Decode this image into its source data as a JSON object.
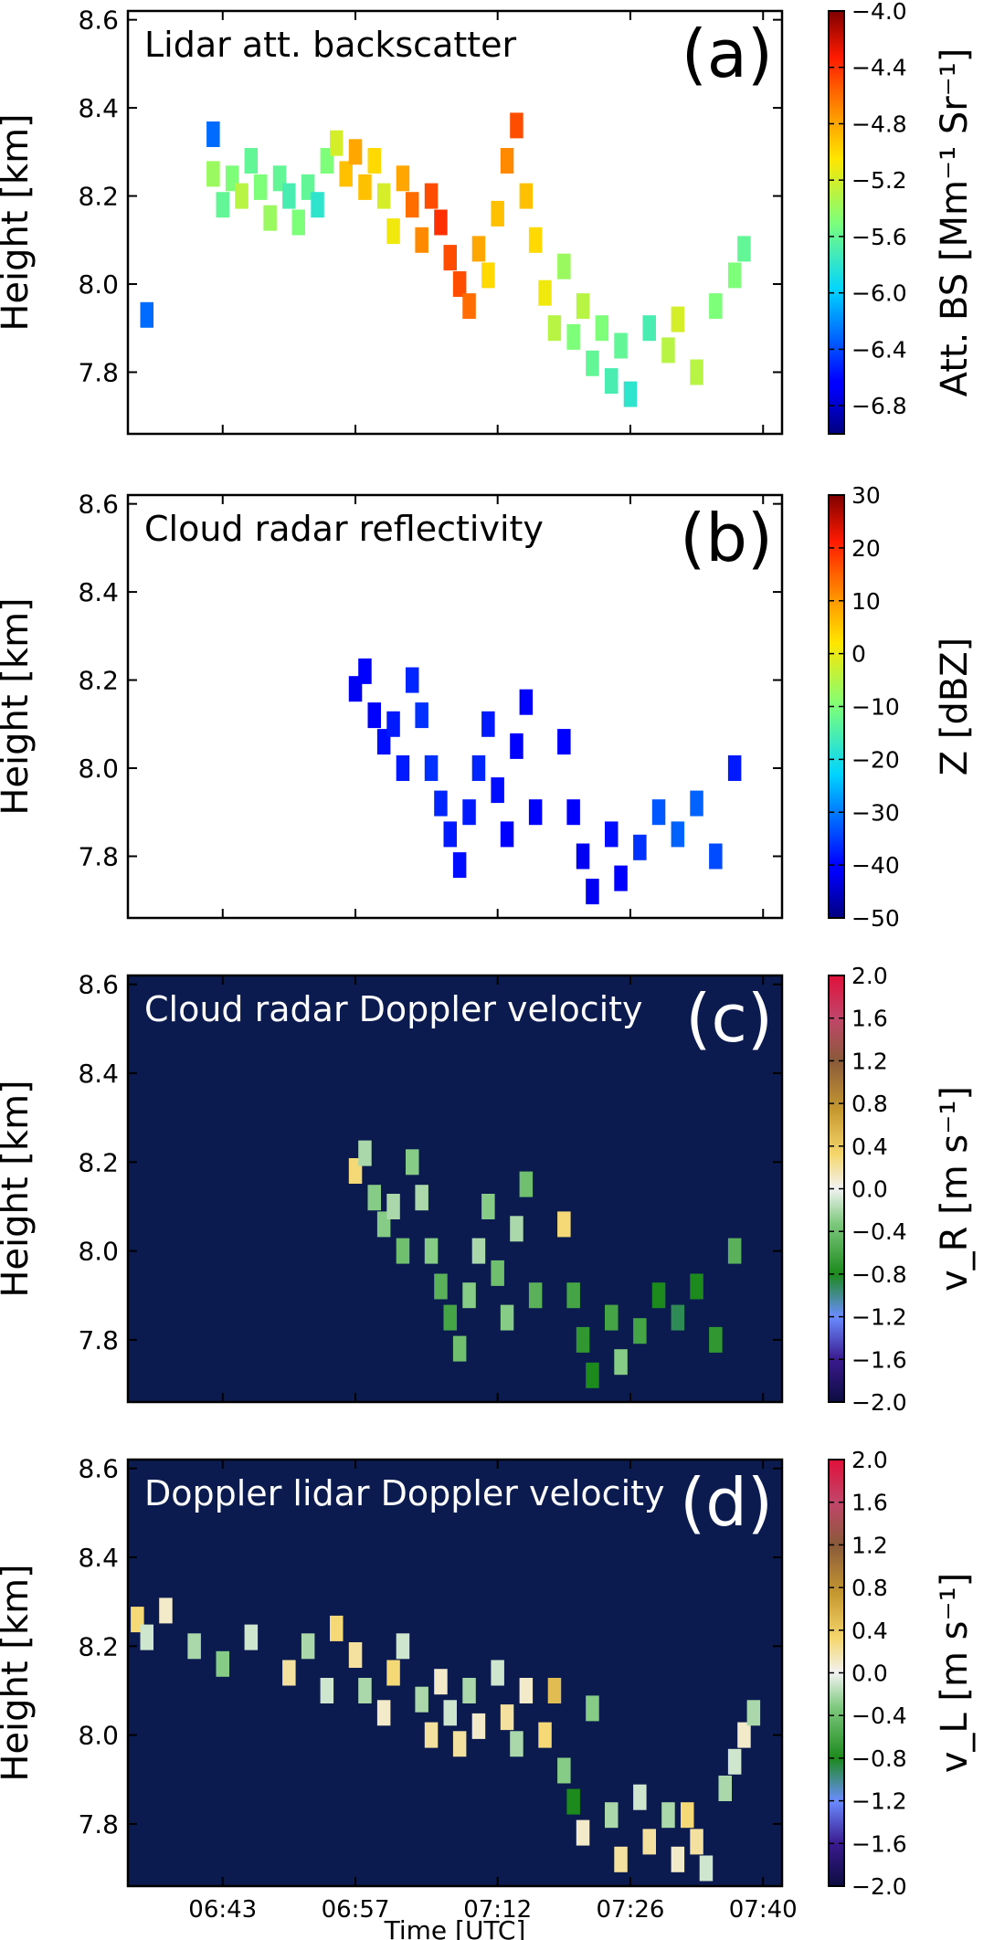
{
  "chart_data": [
    {
      "type": "heatmap",
      "panel_label": "(a)",
      "title": "Lidar att. backscatter",
      "ylabel": "Height [km]",
      "ylim": [
        7.66,
        8.62
      ],
      "yticks": [
        "7.8",
        "8.0",
        "8.2",
        "8.4",
        "8.6"
      ],
      "xlim": [
        "06:33",
        "07:42"
      ],
      "colorbar": {
        "label": "Att. BS [Mm⁻¹ Sr⁻¹]",
        "range": [
          -7.0,
          -4.0
        ],
        "ticks": [
          "-4.0",
          "-4.4",
          "-4.8",
          "-5.2",
          "-5.6",
          "-6.0",
          "-6.4",
          "-6.8"
        ],
        "colormap": "jet",
        "scale": "log10"
      },
      "background": "#ffffff",
      "cells": [
        {
          "t": "06:35",
          "z": 7.93,
          "v": -6.3
        },
        {
          "t": "06:42",
          "z": 8.34,
          "v": -6.3
        },
        {
          "t": "06:42",
          "z": 8.25,
          "v": -5.4
        },
        {
          "t": "06:43",
          "z": 8.18,
          "v": -5.6
        },
        {
          "t": "06:44",
          "z": 8.24,
          "v": -5.5
        },
        {
          "t": "06:45",
          "z": 8.2,
          "v": -5.3
        },
        {
          "t": "06:46",
          "z": 8.28,
          "v": -5.6
        },
        {
          "t": "06:47",
          "z": 8.22,
          "v": -5.5
        },
        {
          "t": "06:48",
          "z": 8.15,
          "v": -5.4
        },
        {
          "t": "06:49",
          "z": 8.24,
          "v": -5.6
        },
        {
          "t": "06:50",
          "z": 8.2,
          "v": -5.7
        },
        {
          "t": "06:51",
          "z": 8.14,
          "v": -5.5
        },
        {
          "t": "06:52",
          "z": 8.22,
          "v": -5.6
        },
        {
          "t": "06:53",
          "z": 8.18,
          "v": -5.8
        },
        {
          "t": "06:54",
          "z": 8.28,
          "v": -5.5
        },
        {
          "t": "06:55",
          "z": 8.32,
          "v": -5.2
        },
        {
          "t": "06:56",
          "z": 8.25,
          "v": -4.9
        },
        {
          "t": "06:57",
          "z": 8.3,
          "v": -4.8
        },
        {
          "t": "06:58",
          "z": 8.22,
          "v": -4.9
        },
        {
          "t": "06:59",
          "z": 8.28,
          "v": -5.0
        },
        {
          "t": "07:00",
          "z": 8.2,
          "v": -5.2
        },
        {
          "t": "07:01",
          "z": 8.12,
          "v": -5.1
        },
        {
          "t": "07:02",
          "z": 8.24,
          "v": -4.8
        },
        {
          "t": "07:03",
          "z": 8.18,
          "v": -4.6
        },
        {
          "t": "07:04",
          "z": 8.1,
          "v": -4.7
        },
        {
          "t": "07:05",
          "z": 8.2,
          "v": -4.5
        },
        {
          "t": "07:06",
          "z": 8.14,
          "v": -4.4
        },
        {
          "t": "07:07",
          "z": 8.06,
          "v": -4.5
        },
        {
          "t": "07:08",
          "z": 8.0,
          "v": -4.5
        },
        {
          "t": "07:09",
          "z": 7.95,
          "v": -4.6
        },
        {
          "t": "07:10",
          "z": 8.08,
          "v": -4.8
        },
        {
          "t": "07:11",
          "z": 8.02,
          "v": -5.0
        },
        {
          "t": "07:12",
          "z": 8.16,
          "v": -4.9
        },
        {
          "t": "07:13",
          "z": 8.28,
          "v": -4.7
        },
        {
          "t": "07:14",
          "z": 8.36,
          "v": -4.5
        },
        {
          "t": "07:15",
          "z": 8.2,
          "v": -4.9
        },
        {
          "t": "07:16",
          "z": 8.1,
          "v": -5.0
        },
        {
          "t": "07:17",
          "z": 7.98,
          "v": -5.1
        },
        {
          "t": "07:18",
          "z": 7.9,
          "v": -5.3
        },
        {
          "t": "07:19",
          "z": 8.04,
          "v": -5.4
        },
        {
          "t": "07:20",
          "z": 7.88,
          "v": -5.5
        },
        {
          "t": "07:21",
          "z": 7.95,
          "v": -5.3
        },
        {
          "t": "07:22",
          "z": 7.82,
          "v": -5.6
        },
        {
          "t": "07:23",
          "z": 7.9,
          "v": -5.5
        },
        {
          "t": "07:24",
          "z": 7.78,
          "v": -5.7
        },
        {
          "t": "07:25",
          "z": 7.86,
          "v": -5.6
        },
        {
          "t": "07:26",
          "z": 7.75,
          "v": -5.8
        },
        {
          "t": "07:28",
          "z": 7.9,
          "v": -5.7
        },
        {
          "t": "07:30",
          "z": 7.85,
          "v": -5.3
        },
        {
          "t": "07:31",
          "z": 7.92,
          "v": -5.2
        },
        {
          "t": "07:33",
          "z": 7.8,
          "v": -5.3
        },
        {
          "t": "07:35",
          "z": 7.95,
          "v": -5.5
        },
        {
          "t": "07:37",
          "z": 8.02,
          "v": -5.5
        },
        {
          "t": "07:38",
          "z": 8.08,
          "v": -5.6
        }
      ]
    },
    {
      "type": "heatmap",
      "panel_label": "(b)",
      "title": "Cloud radar reflectivity",
      "ylabel": "Height [km]",
      "ylim": [
        7.66,
        8.62
      ],
      "yticks": [
        "7.8",
        "8.0",
        "8.2",
        "8.4",
        "8.6"
      ],
      "xlim": [
        "06:33",
        "07:42"
      ],
      "colorbar": {
        "label": "Z [dBZ]",
        "range": [
          -50,
          30
        ],
        "ticks": [
          "30",
          "20",
          "10",
          "0",
          "-10",
          "-20",
          "-30",
          "-40",
          "-50"
        ],
        "colormap": "jet"
      },
      "background": "#ffffff",
      "cells": [
        {
          "t": "06:57",
          "z": 8.18,
          "v": -42
        },
        {
          "t": "06:58",
          "z": 8.22,
          "v": -41
        },
        {
          "t": "06:59",
          "z": 8.12,
          "v": -40
        },
        {
          "t": "07:00",
          "z": 8.06,
          "v": -39
        },
        {
          "t": "07:01",
          "z": 8.1,
          "v": -38
        },
        {
          "t": "07:02",
          "z": 8.0,
          "v": -38
        },
        {
          "t": "07:03",
          "z": 8.2,
          "v": -37
        },
        {
          "t": "07:04",
          "z": 8.12,
          "v": -36
        },
        {
          "t": "07:05",
          "z": 8.0,
          "v": -36
        },
        {
          "t": "07:06",
          "z": 7.92,
          "v": -37
        },
        {
          "t": "07:07",
          "z": 7.85,
          "v": -38
        },
        {
          "t": "07:08",
          "z": 7.78,
          "v": -39
        },
        {
          "t": "07:09",
          "z": 7.9,
          "v": -38
        },
        {
          "t": "07:10",
          "z": 8.0,
          "v": -37
        },
        {
          "t": "07:11",
          "z": 8.1,
          "v": -38
        },
        {
          "t": "07:12",
          "z": 7.95,
          "v": -39
        },
        {
          "t": "07:13",
          "z": 7.85,
          "v": -40
        },
        {
          "t": "07:14",
          "z": 8.05,
          "v": -40
        },
        {
          "t": "07:15",
          "z": 8.15,
          "v": -41
        },
        {
          "t": "07:16",
          "z": 7.9,
          "v": -40
        },
        {
          "t": "07:19",
          "z": 8.06,
          "v": -40
        },
        {
          "t": "07:20",
          "z": 7.9,
          "v": -41
        },
        {
          "t": "07:21",
          "z": 7.8,
          "v": -42
        },
        {
          "t": "07:22",
          "z": 7.72,
          "v": -42
        },
        {
          "t": "07:24",
          "z": 7.85,
          "v": -39
        },
        {
          "t": "07:25",
          "z": 7.75,
          "v": -40
        },
        {
          "t": "07:27",
          "z": 7.82,
          "v": -36
        },
        {
          "t": "07:29",
          "z": 7.9,
          "v": -33
        },
        {
          "t": "07:31",
          "z": 7.85,
          "v": -32
        },
        {
          "t": "07:33",
          "z": 7.92,
          "v": -32
        },
        {
          "t": "07:35",
          "z": 7.8,
          "v": -34
        },
        {
          "t": "07:37",
          "z": 8.0,
          "v": -38
        }
      ]
    },
    {
      "type": "heatmap",
      "panel_label": "(c)",
      "title": "Cloud radar Doppler velocity",
      "ylabel": "Height [km]",
      "ylim": [
        7.66,
        8.62
      ],
      "yticks": [
        "7.8",
        "8.0",
        "8.2",
        "8.4",
        "8.6"
      ],
      "xlim": [
        "06:33",
        "07:42"
      ],
      "colorbar": {
        "label": "v_R [m s⁻¹]",
        "range": [
          -2.0,
          2.0
        ],
        "ticks": [
          "2.0",
          "1.6",
          "1.2",
          "0.8",
          "0.4",
          "0.0",
          "-0.4",
          "-0.8",
          "-1.2",
          "-1.6",
          "-2.0"
        ],
        "colormap": "diverging-green-red"
      },
      "background": "#0b1b4f",
      "cells": [
        {
          "t": "06:57",
          "z": 8.18,
          "v": 0.3
        },
        {
          "t": "06:58",
          "z": 8.22,
          "v": -0.2
        },
        {
          "t": "06:59",
          "z": 8.12,
          "v": -0.3
        },
        {
          "t": "07:00",
          "z": 8.06,
          "v": -0.3
        },
        {
          "t": "07:01",
          "z": 8.1,
          "v": -0.2
        },
        {
          "t": "07:02",
          "z": 8.0,
          "v": -0.4
        },
        {
          "t": "07:03",
          "z": 8.2,
          "v": -0.3
        },
        {
          "t": "07:04",
          "z": 8.12,
          "v": -0.2
        },
        {
          "t": "07:05",
          "z": 8.0,
          "v": -0.3
        },
        {
          "t": "07:06",
          "z": 7.92,
          "v": -0.5
        },
        {
          "t": "07:07",
          "z": 7.85,
          "v": -0.6
        },
        {
          "t": "07:08",
          "z": 7.78,
          "v": -0.4
        },
        {
          "t": "07:09",
          "z": 7.9,
          "v": -0.3
        },
        {
          "t": "07:10",
          "z": 8.0,
          "v": -0.2
        },
        {
          "t": "07:11",
          "z": 8.1,
          "v": -0.3
        },
        {
          "t": "07:12",
          "z": 7.95,
          "v": -0.4
        },
        {
          "t": "07:13",
          "z": 7.85,
          "v": -0.3
        },
        {
          "t": "07:14",
          "z": 8.05,
          "v": -0.2
        },
        {
          "t": "07:15",
          "z": 8.15,
          "v": -0.4
        },
        {
          "t": "07:16",
          "z": 7.9,
          "v": -0.5
        },
        {
          "t": "07:19",
          "z": 8.06,
          "v": 0.3
        },
        {
          "t": "07:20",
          "z": 7.9,
          "v": -0.6
        },
        {
          "t": "07:21",
          "z": 7.8,
          "v": -0.7
        },
        {
          "t": "07:22",
          "z": 7.72,
          "v": -0.8
        },
        {
          "t": "07:24",
          "z": 7.85,
          "v": -0.6
        },
        {
          "t": "07:25",
          "z": 7.75,
          "v": -0.3
        },
        {
          "t": "07:27",
          "z": 7.82,
          "v": -0.6
        },
        {
          "t": "07:29",
          "z": 7.9,
          "v": -0.8
        },
        {
          "t": "07:31",
          "z": 7.85,
          "v": -0.9
        },
        {
          "t": "07:33",
          "z": 7.92,
          "v": -0.8
        },
        {
          "t": "07:35",
          "z": 7.8,
          "v": -0.7
        },
        {
          "t": "07:37",
          "z": 8.0,
          "v": -0.5
        }
      ]
    },
    {
      "type": "heatmap",
      "panel_label": "(d)",
      "title": "Doppler lidar Doppler velocity",
      "ylabel": "Height [km]",
      "xlabel": "Time [UTC]",
      "ylim": [
        7.66,
        8.62
      ],
      "yticks": [
        "7.8",
        "8.0",
        "8.2",
        "8.4",
        "8.6"
      ],
      "xlim": [
        "06:33",
        "07:42"
      ],
      "xticks": [
        "06:43",
        "06:57",
        "07:12",
        "07:26",
        "07:40"
      ],
      "colorbar": {
        "label": "v_L [m s⁻¹]",
        "range": [
          -2.0,
          2.0
        ],
        "ticks": [
          "2.0",
          "1.6",
          "1.2",
          "0.8",
          "0.4",
          "0.0",
          "-0.4",
          "-0.8",
          "-1.2",
          "-1.6",
          "-2.0"
        ],
        "colormap": "diverging-green-red"
      },
      "background": "#0b1b4f",
      "cells": [
        {
          "t": "06:34",
          "z": 8.26,
          "v": 0.3
        },
        {
          "t": "06:35",
          "z": 8.22,
          "v": -0.1
        },
        {
          "t": "06:37",
          "z": 8.28,
          "v": 0.1
        },
        {
          "t": "06:40",
          "z": 8.2,
          "v": -0.2
        },
        {
          "t": "06:43",
          "z": 8.16,
          "v": -0.3
        },
        {
          "t": "06:46",
          "z": 8.22,
          "v": -0.1
        },
        {
          "t": "06:50",
          "z": 8.14,
          "v": 0.2
        },
        {
          "t": "06:52",
          "z": 8.2,
          "v": -0.2
        },
        {
          "t": "06:54",
          "z": 8.1,
          "v": -0.1
        },
        {
          "t": "06:55",
          "z": 8.24,
          "v": 0.3
        },
        {
          "t": "06:57",
          "z": 8.18,
          "v": 0.2
        },
        {
          "t": "06:58",
          "z": 8.1,
          "v": -0.2
        },
        {
          "t": "07:00",
          "z": 8.05,
          "v": 0.1
        },
        {
          "t": "07:01",
          "z": 8.14,
          "v": 0.3
        },
        {
          "t": "07:02",
          "z": 8.2,
          "v": -0.1
        },
        {
          "t": "07:04",
          "z": 8.08,
          "v": -0.2
        },
        {
          "t": "07:05",
          "z": 8.0,
          "v": 0.2
        },
        {
          "t": "07:06",
          "z": 8.12,
          "v": 0.1
        },
        {
          "t": "07:07",
          "z": 8.05,
          "v": -0.1
        },
        {
          "t": "07:08",
          "z": 7.98,
          "v": 0.2
        },
        {
          "t": "07:09",
          "z": 8.1,
          "v": -0.2
        },
        {
          "t": "07:10",
          "z": 8.02,
          "v": 0.1
        },
        {
          "t": "07:12",
          "z": 8.14,
          "v": -0.1
        },
        {
          "t": "07:13",
          "z": 8.04,
          "v": 0.2
        },
        {
          "t": "07:14",
          "z": 7.98,
          "v": -0.2
        },
        {
          "t": "07:15",
          "z": 8.1,
          "v": 0.1
        },
        {
          "t": "07:17",
          "z": 8.0,
          "v": 0.3
        },
        {
          "t": "07:18",
          "z": 8.1,
          "v": 0.5
        },
        {
          "t": "07:19",
          "z": 7.92,
          "v": -0.3
        },
        {
          "t": "07:20",
          "z": 7.85,
          "v": -0.8
        },
        {
          "t": "07:21",
          "z": 7.78,
          "v": 0.1
        },
        {
          "t": "07:22",
          "z": 8.06,
          "v": -0.3
        },
        {
          "t": "07:24",
          "z": 7.82,
          "v": -0.2
        },
        {
          "t": "07:25",
          "z": 7.72,
          "v": 0.2
        },
        {
          "t": "07:27",
          "z": 7.86,
          "v": -0.1
        },
        {
          "t": "07:28",
          "z": 7.76,
          "v": 0.2
        },
        {
          "t": "07:30",
          "z": 7.82,
          "v": -0.2
        },
        {
          "t": "07:31",
          "z": 7.72,
          "v": 0.1
        },
        {
          "t": "07:32",
          "z": 7.82,
          "v": 0.3
        },
        {
          "t": "07:33",
          "z": 7.76,
          "v": 0.2
        },
        {
          "t": "07:34",
          "z": 7.7,
          "v": -0.1
        },
        {
          "t": "07:36",
          "z": 7.88,
          "v": -0.2
        },
        {
          "t": "07:37",
          "z": 7.94,
          "v": -0.1
        },
        {
          "t": "07:38",
          "z": 8.0,
          "v": 0.1
        },
        {
          "t": "07:39",
          "z": 8.05,
          "v": -0.2
        }
      ]
    }
  ]
}
